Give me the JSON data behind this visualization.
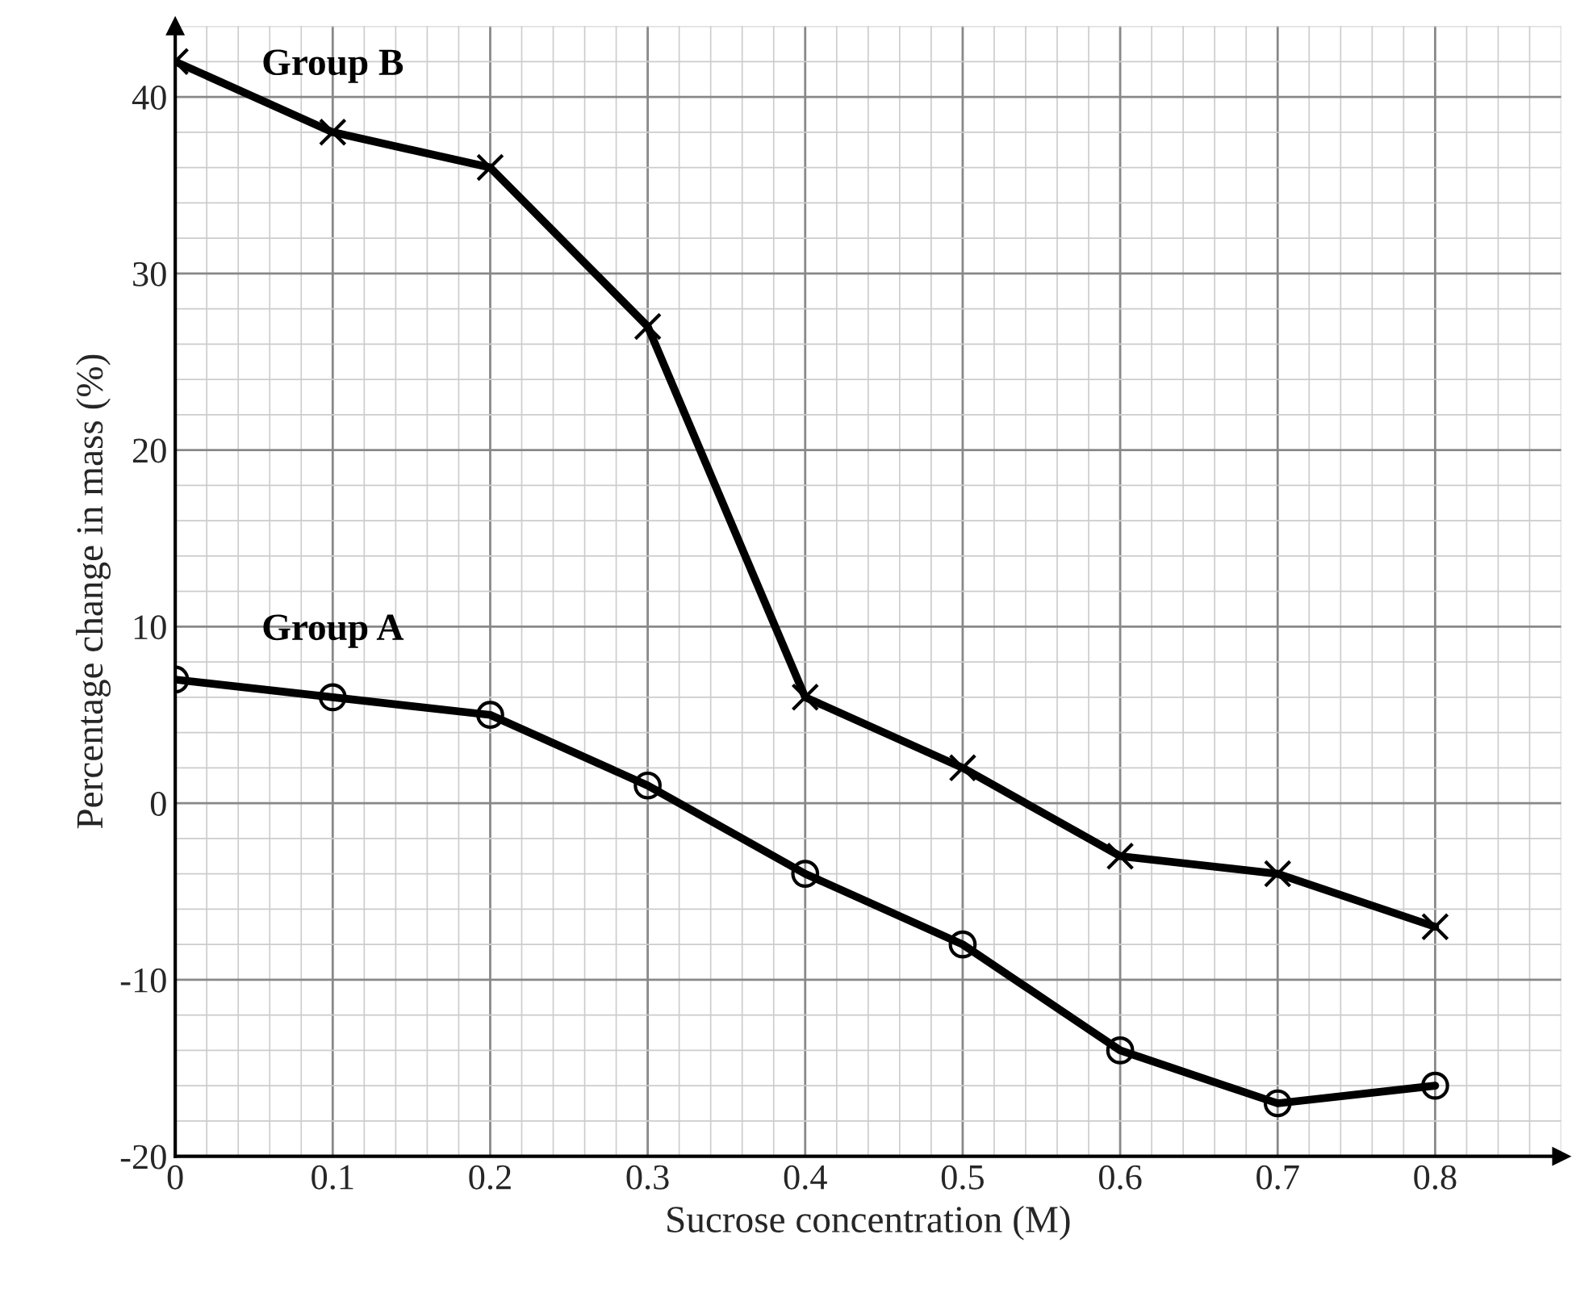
{
  "chart_data": {
    "type": "line",
    "xlabel": "Sucrose concentration (M)",
    "ylabel": "Percentage change in mass (%)",
    "x": [
      0,
      0.1,
      0.2,
      0.3,
      0.4,
      0.5,
      0.6,
      0.7,
      0.8
    ],
    "series": [
      {
        "name": "Group B",
        "color": "#000000",
        "marker": "cross",
        "values": [
          42,
          38,
          36,
          27,
          6,
          2,
          -3,
          -4,
          -7
        ]
      },
      {
        "name": "Group A",
        "color": "#000000",
        "marker": "circle",
        "values": [
          7,
          6,
          5,
          1,
          -4,
          -8,
          -14,
          -17,
          -16
        ]
      }
    ],
    "xlim": [
      0,
      0.88
    ],
    "ylim": [
      -20,
      44
    ],
    "xticks": [
      0,
      0.1,
      0.2,
      0.3,
      0.4,
      0.5,
      0.6,
      0.7,
      0.8
    ],
    "yticks": [
      -20,
      -10,
      0,
      10,
      20,
      30,
      40
    ],
    "grid": true,
    "line_style": "solid"
  }
}
